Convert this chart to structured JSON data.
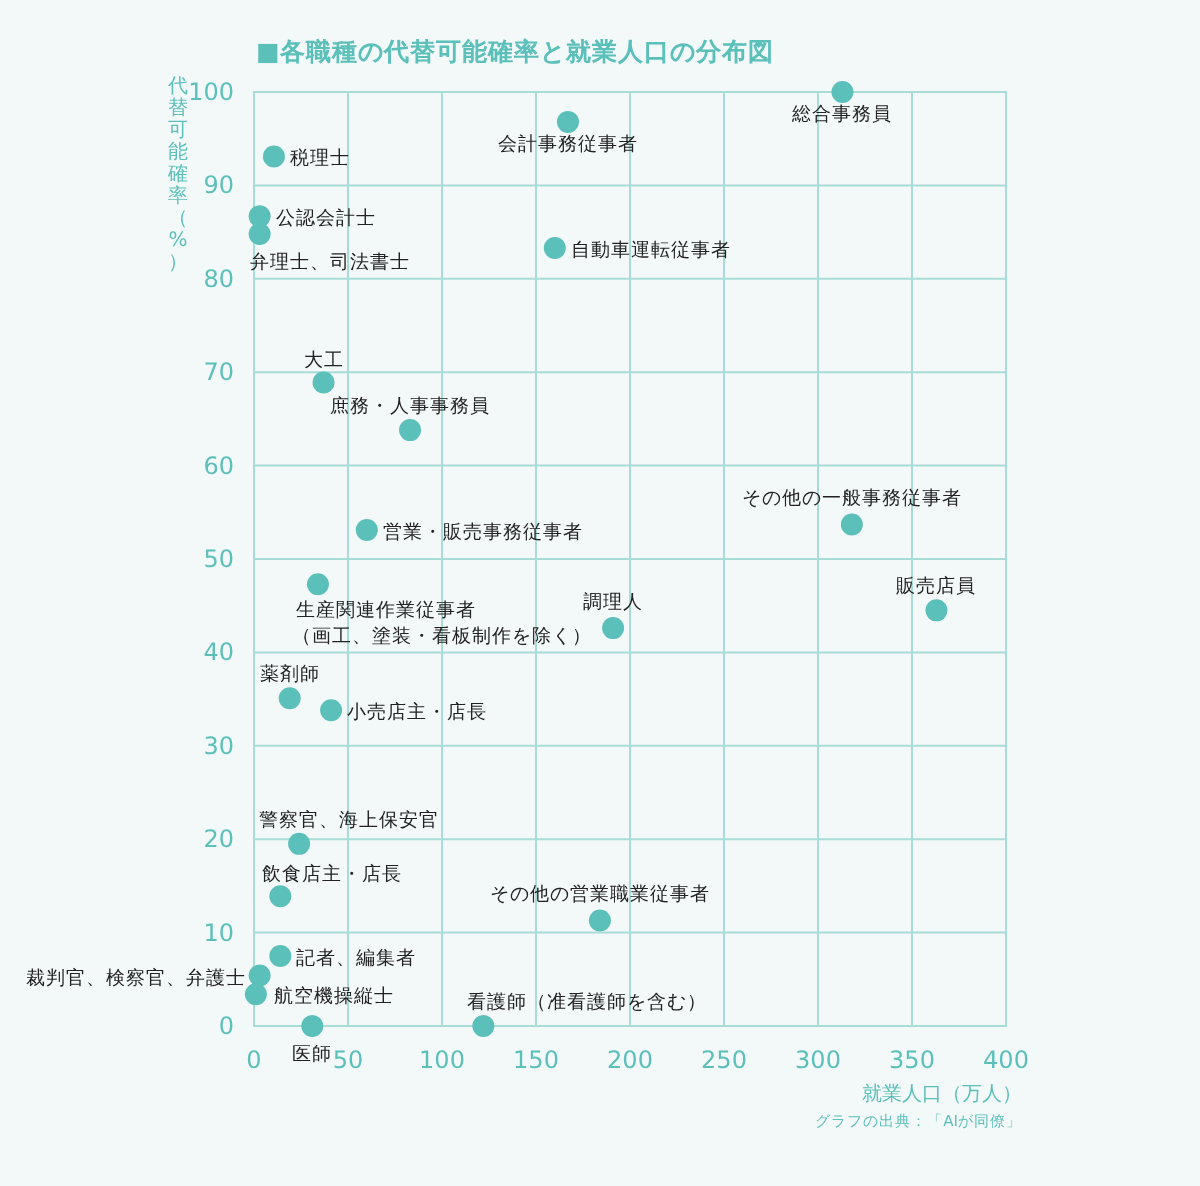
{
  "chart_data": {
    "type": "scatter",
    "title": "■各職種の代替可能確率と就業人口の分布図",
    "xlabel": "就業人口（万人）",
    "ylabel": "代替可能確率（%）",
    "x": [
      313,
      167,
      10.6,
      3,
      3,
      160,
      37,
      83,
      318,
      60,
      34,
      363,
      191,
      19,
      41,
      24,
      14,
      184,
      14,
      3,
      1,
      31,
      122
    ],
    "values": [
      100,
      96.8,
      93.1,
      86.7,
      84.8,
      83.3,
      68.9,
      63.8,
      53.7,
      53.1,
      47.3,
      44.5,
      42.6,
      35.1,
      33.8,
      19.5,
      13.9,
      11.3,
      7.5,
      5.4,
      3.4,
      0,
      0
    ],
    "color": "#5bbfba",
    "marker": "circle",
    "grid": true,
    "xlim": [
      0,
      400
    ],
    "ylim": [
      0,
      100
    ],
    "xticks": [
      0,
      50,
      100,
      150,
      200,
      250,
      300,
      350,
      400
    ],
    "yticks": [
      0,
      10,
      20,
      30,
      40,
      50,
      60,
      70,
      80,
      90,
      100
    ],
    "annotations": [
      {
        "text": "総合事務員",
        "x": 313,
        "y": 100
      },
      {
        "text": "会計事務従事者",
        "x": 167,
        "y": 96.8
      },
      {
        "text": "税理士",
        "x": 10.6,
        "y": 93.1
      },
      {
        "text": "公認会計士",
        "x": 3,
        "y": 86.7
      },
      {
        "text": "弁理士、司法書士",
        "x": 3,
        "y": 84.8
      },
      {
        "text": "自動車運転従事者",
        "x": 160,
        "y": 83.3
      },
      {
        "text": "大工",
        "x": 37,
        "y": 68.9
      },
      {
        "text": "庶務・人事事務員",
        "x": 83,
        "y": 63.8
      },
      {
        "text": "その他の一般事務従事者",
        "x": 318,
        "y": 53.7
      },
      {
        "text": "営業・販売事務従事者",
        "x": 60,
        "y": 53.1
      },
      {
        "text": "生産関連作業従事者",
        "x": 34,
        "y": 47.3
      },
      {
        "text": "（画工、塗装・看板制作を除く）",
        "x": 34,
        "y": 47.3
      },
      {
        "text": "販売店員",
        "x": 363,
        "y": 44.5
      },
      {
        "text": "調理人",
        "x": 191,
        "y": 42.6
      },
      {
        "text": "薬剤師",
        "x": 19,
        "y": 35.1
      },
      {
        "text": "小売店主・店長",
        "x": 41,
        "y": 33.8
      },
      {
        "text": "警察官、海上保安官",
        "x": 24,
        "y": 19.5
      },
      {
        "text": "飲食店主・店長",
        "x": 14,
        "y": 13.9
      },
      {
        "text": "その他の営業職業従事者",
        "x": 184,
        "y": 11.3
      },
      {
        "text": "記者、編集者",
        "x": 14,
        "y": 7.5
      },
      {
        "text": "裁判官、検察官、弁護士",
        "x": 3,
        "y": 5.4
      },
      {
        "text": "航空機操縦士",
        "x": 1,
        "y": 3.4
      },
      {
        "text": "医師",
        "x": 31,
        "y": 0
      },
      {
        "text": "看護師（准看護師を含む）",
        "x": 122,
        "y": 0
      },
      "グラフの出典：「AIが同僚」"
    ]
  }
}
